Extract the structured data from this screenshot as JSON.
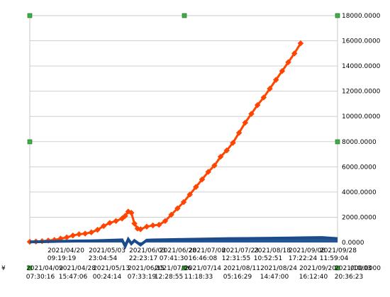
{
  "chart_data": {
    "type": "line",
    "title": "",
    "xlabel": "",
    "ylabel": "",
    "ylim": [
      0,
      18000
    ],
    "y_ticks": [
      "0.0000",
      "2000.0000",
      "4000.0000",
      "6000.0000",
      "8000.0000",
      "10000.0000",
      "12000.0000",
      "14000.0000",
      "16000.0000",
      "18000.0000"
    ],
    "y_tick_bottom_extra": "000.0000",
    "x_axis": {
      "upper_row": [
        {
          "date": "2021/04/20",
          "time": "09:19:19"
        },
        {
          "date": "2021/05/03",
          "time": "23:04:54"
        },
        {
          "date": "2021/06/03",
          "time": "22:23:17"
        },
        {
          "date": "2021/06/28",
          "time": "07:41:30"
        },
        {
          "date": "2021/07/08",
          "time": "16:46:08"
        },
        {
          "date": "2021/07/23",
          "time": "12:31:55"
        },
        {
          "date": "2021/08/18",
          "time": "10:52:51"
        },
        {
          "date": "2021/09/08",
          "time": "17:22:24"
        },
        {
          "date": "2021/09/28",
          "time": "11:59:04"
        }
      ],
      "lower_row": [
        {
          "date": "2021/04/09",
          "time": "07:30:16"
        },
        {
          "date": "2021/04/28",
          "time": "15:47:06"
        },
        {
          "date": "2021/05/13",
          "time": "00:24:14"
        },
        {
          "date": "2021/06/15",
          "time": "07:33:19"
        },
        {
          "date": "2021/07/06",
          "time": "12:28:55"
        },
        {
          "date": "2021/07/14",
          "time": "11:18:33"
        },
        {
          "date": "2021/08/11",
          "time": "05:16:29"
        },
        {
          "date": "2021/08/24",
          "time": "14:47:00"
        },
        {
          "date": "2021/09/20",
          "time": "16:12:40"
        },
        {
          "date": "2021/10/03",
          "time": "20:36:23"
        }
      ],
      "left_cut_label": "¥"
    },
    "grid": "horizontal",
    "legend": "none",
    "series": [
      {
        "color": "#ff4500",
        "marker": "diamond",
        "x": [
          0,
          0.02,
          0.04,
          0.06,
          0.08,
          0.1,
          0.12,
          0.14,
          0.16,
          0.18,
          0.2,
          0.22,
          0.24,
          0.26,
          0.28,
          0.3,
          0.31,
          0.32,
          0.33,
          0.34,
          0.35,
          0.36,
          0.38,
          0.4,
          0.42,
          0.44,
          0.46,
          0.48,
          0.5,
          0.52,
          0.54,
          0.56,
          0.58,
          0.6,
          0.62,
          0.64,
          0.66,
          0.68,
          0.7,
          0.72,
          0.74,
          0.76,
          0.78,
          0.8,
          0.82,
          0.84,
          0.86,
          0.88,
          0.9,
          0.92,
          0.94,
          0.96,
          0.98,
          1.0
        ],
        "values": [
          50,
          70,
          100,
          150,
          200,
          300,
          400,
          550,
          650,
          700,
          800,
          1000,
          1300,
          1550,
          1700,
          1900,
          2100,
          2450,
          2350,
          1500,
          1100,
          1050,
          1250,
          1350,
          1400,
          1700,
          2200,
          2700,
          3200,
          3800,
          4400,
          5000,
          5600,
          6100,
          6800,
          7300,
          7900,
          8700,
          9500,
          10200,
          10900,
          11500,
          12200,
          12900,
          13600,
          14300,
          15000,
          15800,
          null,
          null,
          null,
          null,
          null,
          null
        ]
      },
      {
        "color": "#1a4c8c",
        "marker": "square",
        "x": [
          0,
          0.05,
          0.1,
          0.15,
          0.2,
          0.25,
          0.3,
          0.31,
          0.32,
          0.33,
          0.34,
          0.36,
          0.38,
          0.4,
          0.45,
          0.5,
          0.55,
          0.6,
          0.65,
          0.7,
          0.75,
          0.8,
          0.85,
          0.9,
          0.95,
          1.0
        ],
        "values": [
          40,
          60,
          90,
          110,
          130,
          160,
          200,
          -300,
          250,
          -100,
          150,
          -200,
          180,
          200,
          220,
          240,
          260,
          280,
          300,
          310,
          320,
          340,
          350,
          370,
          390,
          300
        ]
      }
    ]
  }
}
